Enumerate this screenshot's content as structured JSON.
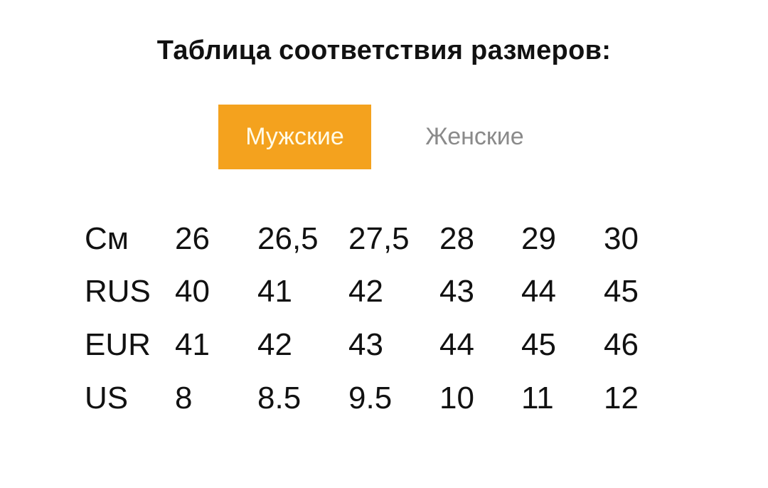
{
  "title": "Таблица соответствия размеров:",
  "tabs": [
    {
      "label": "Мужские",
      "active": true
    },
    {
      "label": "Женские",
      "active": false
    }
  ],
  "accent_color": "#F4A21E",
  "table": {
    "rows": [
      {
        "label": "См",
        "values": [
          "26",
          "26,5",
          "27,5",
          "28",
          "29",
          "30"
        ]
      },
      {
        "label": "RUS",
        "values": [
          "40",
          "41",
          "42",
          "43",
          "44",
          "45"
        ]
      },
      {
        "label": "EUR",
        "values": [
          "41",
          "42",
          "43",
          "44",
          "45",
          "46"
        ]
      },
      {
        "label": "US",
        "values": [
          "8",
          "8.5",
          "9.5",
          "10",
          "11",
          "12"
        ]
      }
    ]
  }
}
